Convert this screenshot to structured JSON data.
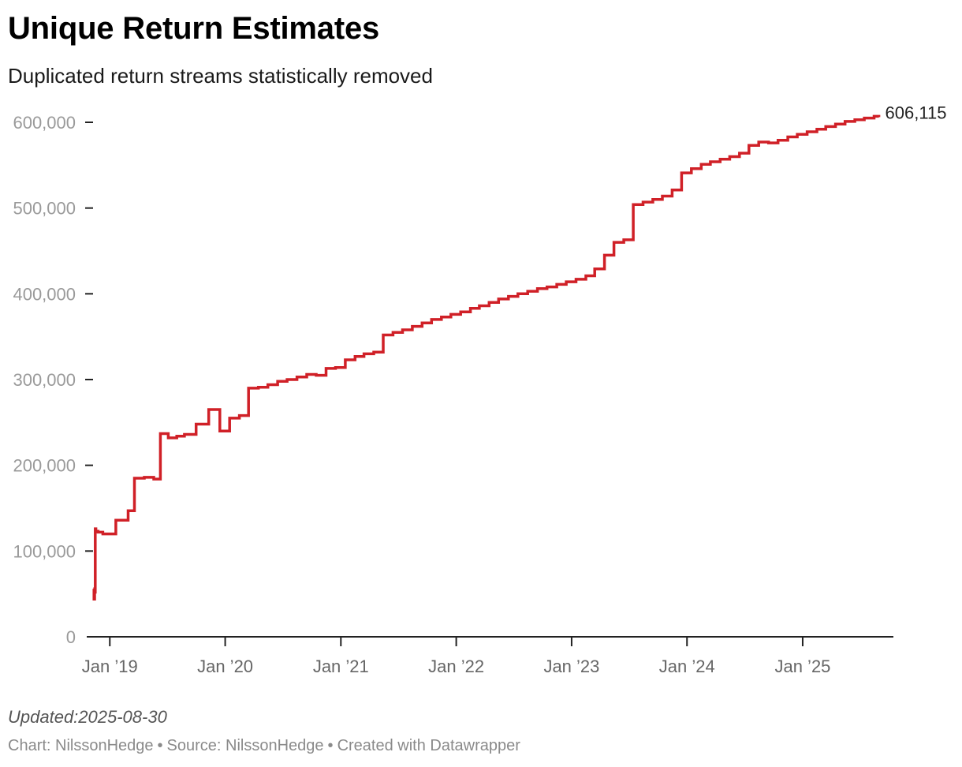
{
  "header": {
    "title": "Unique Return Estimates",
    "subtitle": "Duplicated return streams statistically removed"
  },
  "footer": {
    "updated": "Updated:2025-08-30",
    "credit_chart": "Chart: NilssonHedge",
    "credit_source": "Source: NilssonHedge",
    "credit_tool": "Created with Datawrapper",
    "separator": "•"
  },
  "chart_data": {
    "type": "line",
    "step": true,
    "title": "Unique Return Estimates",
    "subtitle": "Duplicated return streams statistically removed",
    "xlabel": "",
    "ylabel": "",
    "ylim": [
      0,
      600000
    ],
    "y_ticks": [
      0,
      100000,
      200000,
      300000,
      400000,
      500000,
      600000
    ],
    "y_tick_labels": [
      "0",
      "100,000",
      "200,000",
      "300,000",
      "400,000",
      "500,000",
      "600,000"
    ],
    "xlim": [
      "2018-10-20",
      "2025-10-15"
    ],
    "x_ticks": [
      "2019-01-01",
      "2020-01-01",
      "2021-01-01",
      "2022-01-01",
      "2023-01-01",
      "2024-01-01",
      "2025-01-01"
    ],
    "x_tick_labels": [
      "Jan ’19",
      "Jan ’20",
      "Jan ’21",
      "Jan ’22",
      "Jan ’23",
      "Jan ’24",
      "Jan ’25"
    ],
    "grid": false,
    "color": "#d02027",
    "end_label": "606,115",
    "x": [
      "2018-11-10",
      "2018-11-12",
      "2018-11-14",
      "2018-11-16",
      "2018-11-18",
      "2018-11-25",
      "2018-12-10",
      "2019-01-20",
      "2019-02-28",
      "2019-03-20",
      "2019-04-20",
      "2019-05-20",
      "2019-06-10",
      "2019-07-05",
      "2019-08-01",
      "2019-08-25",
      "2019-10-01",
      "2019-11-10",
      "2019-12-15",
      "2020-01-15",
      "2020-02-15",
      "2020-03-15",
      "2020-04-15",
      "2020-05-15",
      "2020-06-15",
      "2020-07-15",
      "2020-08-15",
      "2020-09-15",
      "2020-10-15",
      "2020-11-15",
      "2020-12-15",
      "2021-01-15",
      "2021-02-15",
      "2021-03-15",
      "2021-04-15",
      "2021-05-15",
      "2021-06-15",
      "2021-07-15",
      "2021-08-15",
      "2021-09-15",
      "2021-10-15",
      "2021-11-15",
      "2021-12-15",
      "2022-01-15",
      "2022-02-15",
      "2022-03-15",
      "2022-04-15",
      "2022-05-15",
      "2022-06-15",
      "2022-07-15",
      "2022-08-15",
      "2022-09-15",
      "2022-10-15",
      "2022-11-15",
      "2022-12-15",
      "2023-01-15",
      "2023-02-15",
      "2023-03-15",
      "2023-04-15",
      "2023-05-15",
      "2023-06-15",
      "2023-07-15",
      "2023-08-15",
      "2023-09-15",
      "2023-10-15",
      "2023-11-15",
      "2023-12-15",
      "2024-01-15",
      "2024-02-15",
      "2024-03-15",
      "2024-04-15",
      "2024-05-15",
      "2024-06-15",
      "2024-07-15",
      "2024-08-15",
      "2024-09-15",
      "2024-10-15",
      "2024-11-15",
      "2024-12-15",
      "2025-01-15",
      "2025-02-15",
      "2025-03-15",
      "2025-04-15",
      "2025-05-15",
      "2025-06-15",
      "2025-07-15",
      "2025-08-15",
      "2025-08-30"
    ],
    "y": [
      56000,
      44000,
      52000,
      126000,
      123000,
      122000,
      120000,
      136000,
      147000,
      185000,
      186000,
      184000,
      237000,
      232000,
      234000,
      236000,
      248000,
      265000,
      240000,
      255000,
      258000,
      290000,
      291000,
      294000,
      298000,
      300000,
      303000,
      306000,
      305000,
      313000,
      314000,
      323000,
      327000,
      330000,
      332000,
      352000,
      355000,
      358000,
      362000,
      366000,
      370000,
      373000,
      376000,
      379000,
      383000,
      386000,
      390000,
      394000,
      397000,
      400000,
      403000,
      406000,
      408000,
      411000,
      414000,
      417000,
      421000,
      429000,
      445000,
      460000,
      463000,
      504000,
      507000,
      510000,
      514000,
      521000,
      541000,
      546000,
      551000,
      554000,
      557000,
      560000,
      564000,
      573000,
      577000,
      576000,
      579000,
      583000,
      586000,
      589000,
      592000,
      595000,
      598000,
      601000,
      603000,
      605000,
      607000,
      606115
    ]
  }
}
